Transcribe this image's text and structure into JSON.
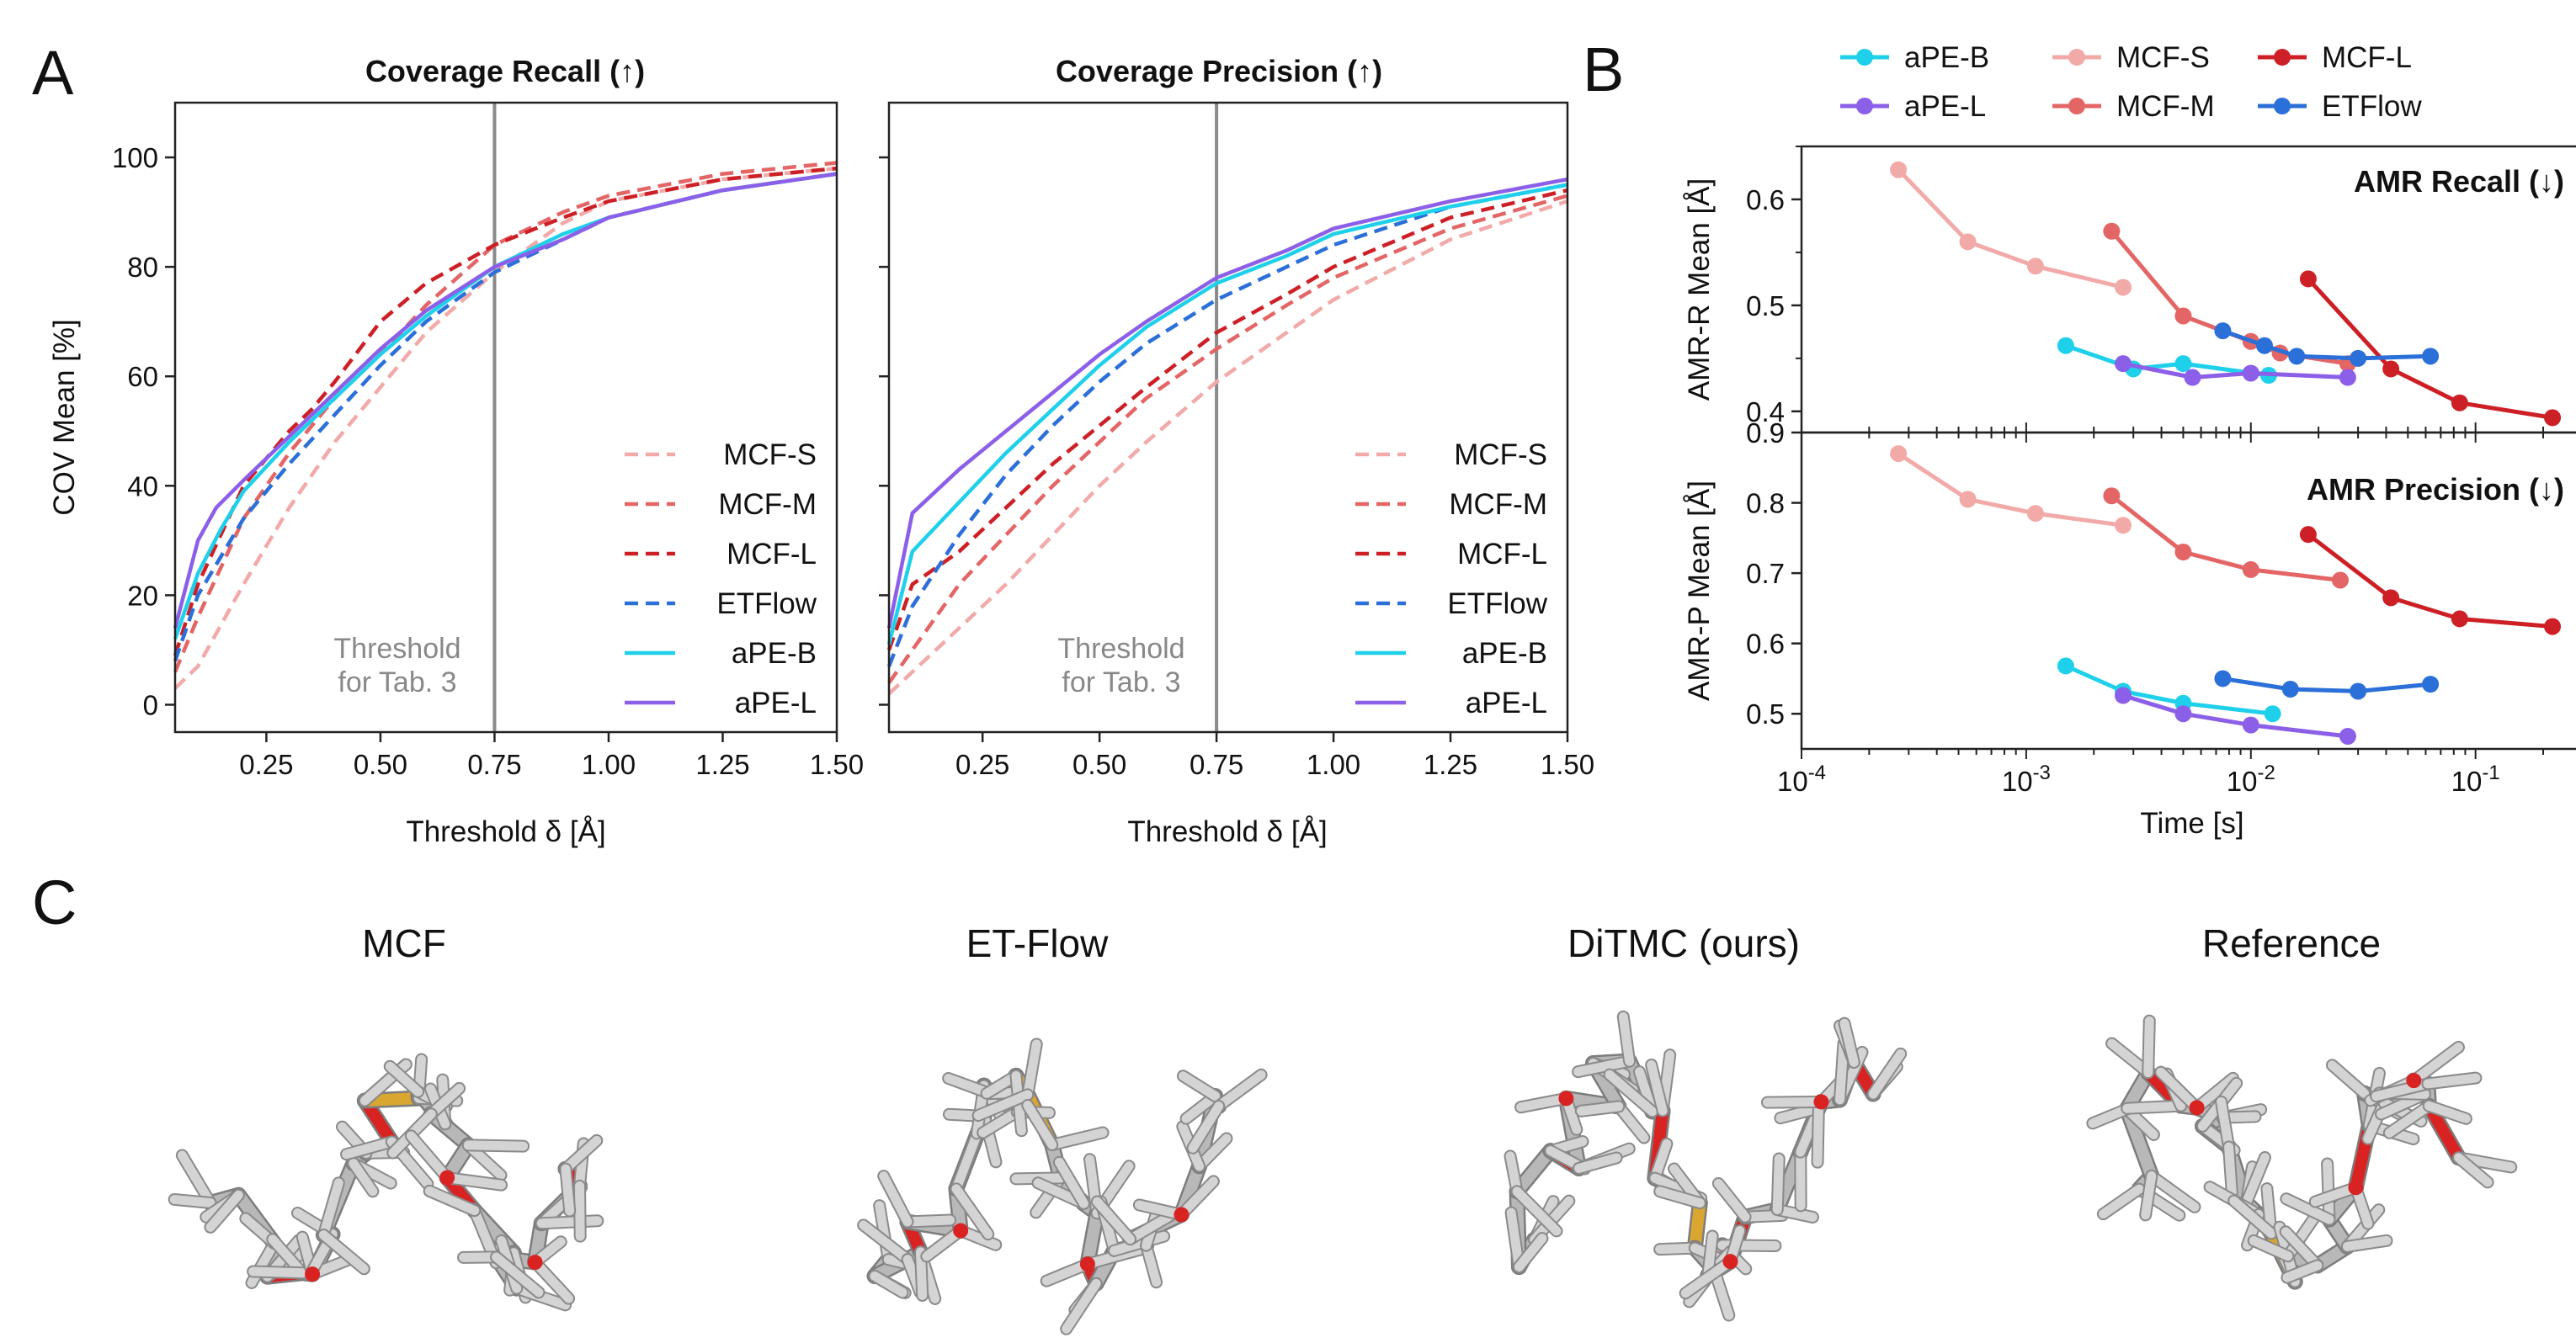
{
  "panels": {
    "a": "A",
    "b": "B",
    "c": "C"
  },
  "colors": {
    "MCF-S": "#f2aaa9",
    "MCF-M": "#e46565",
    "MCF-L": "#cd2026",
    "ETFlow": "#2b6fd9",
    "aPE-B": "#1fd0ea",
    "aPE-L": "#8c5fe8",
    "threshold": "#8a8a8a",
    "atom_O": "#d92323",
    "atom_S": "#d9a632",
    "bond_C": "#b8b8b8"
  },
  "threshold_note": [
    "Threshold",
    "for Tab. 3"
  ],
  "panel_c": {
    "labels": [
      "MCF",
      "ET-Flow",
      "DiTMC (ours)",
      "Reference"
    ],
    "icons": [
      "molecule-mcf-icon",
      "molecule-etflow-icon",
      "molecule-ditmc-icon",
      "molecule-reference-icon"
    ]
  },
  "chart_data": [
    {
      "type": "line",
      "title": "Coverage Recall (↑)",
      "xlabel": "Threshold δ [Å]",
      "ylabel": "COV Mean [%]",
      "xlim": [
        0.05,
        1.5
      ],
      "ylim": [
        -5,
        110
      ],
      "xticks": [
        "0.25",
        "0.50",
        "0.75",
        "1.00",
        "1.25",
        "1.50"
      ],
      "yticks": [
        "0",
        "20",
        "40",
        "60",
        "80",
        "100"
      ],
      "vline": 0.75,
      "legend": "bottom-right",
      "series": [
        {
          "name": "MCF-S",
          "dash": true,
          "x": [
            0.05,
            0.1,
            0.2,
            0.3,
            0.4,
            0.5,
            0.6,
            0.75,
            0.9,
            1.0,
            1.25,
            1.5
          ],
          "y": [
            3,
            7,
            22,
            36,
            48,
            58,
            68,
            79,
            88,
            92,
            96,
            98
          ]
        },
        {
          "name": "MCF-M",
          "dash": true,
          "x": [
            0.05,
            0.1,
            0.2,
            0.3,
            0.4,
            0.5,
            0.6,
            0.75,
            0.9,
            1.0,
            1.25,
            1.5
          ],
          "y": [
            6,
            16,
            34,
            46,
            56,
            64,
            73,
            84,
            90,
            93,
            97,
            99
          ]
        },
        {
          "name": "MCF-L",
          "dash": true,
          "x": [
            0.05,
            0.1,
            0.2,
            0.3,
            0.35,
            0.4,
            0.5,
            0.6,
            0.75,
            0.9,
            1.0,
            1.25,
            1.5
          ],
          "y": [
            9,
            22,
            40,
            50,
            54,
            59,
            70,
            77,
            84,
            89,
            92,
            96,
            98
          ]
        },
        {
          "name": "ETFlow",
          "dash": true,
          "x": [
            0.05,
            0.1,
            0.2,
            0.3,
            0.4,
            0.5,
            0.6,
            0.75,
            0.9,
            1.0,
            1.25,
            1.5
          ],
          "y": [
            8,
            20,
            34,
            44,
            53,
            62,
            70,
            79,
            85,
            89,
            94,
            97
          ]
        },
        {
          "name": "aPE-B",
          "dash": false,
          "x": [
            0.05,
            0.1,
            0.15,
            0.2,
            0.3,
            0.4,
            0.5,
            0.6,
            0.75,
            0.9,
            1.0,
            1.25,
            1.5
          ],
          "y": [
            12,
            24,
            32,
            39,
            48,
            56,
            64,
            71,
            80,
            86,
            89,
            94,
            97
          ]
        },
        {
          "name": "aPE-L",
          "dash": false,
          "x": [
            0.05,
            0.1,
            0.14,
            0.2,
            0.3,
            0.4,
            0.5,
            0.6,
            0.75,
            0.9,
            1.0,
            1.25,
            1.5
          ],
          "y": [
            14,
            30,
            36,
            41,
            49,
            57,
            65,
            72,
            80,
            85,
            89,
            94,
            97
          ]
        }
      ]
    },
    {
      "type": "line",
      "title": "Coverage Precision (↑)",
      "xlabel": "Threshold δ [Å]",
      "ylabel": "",
      "xlim": [
        0.05,
        1.5
      ],
      "ylim": [
        -5,
        110
      ],
      "xticks": [
        "0.25",
        "0.50",
        "0.75",
        "1.00",
        "1.25",
        "1.50"
      ],
      "yticks": [],
      "vline": 0.75,
      "legend": "bottom-right",
      "series": [
        {
          "name": "MCF-S",
          "dash": true,
          "x": [
            0.05,
            0.1,
            0.2,
            0.3,
            0.4,
            0.5,
            0.6,
            0.75,
            0.9,
            1.0,
            1.25,
            1.5
          ],
          "y": [
            2,
            6,
            14,
            22,
            31,
            40,
            48,
            59,
            68,
            74,
            85,
            92
          ]
        },
        {
          "name": "MCF-M",
          "dash": true,
          "x": [
            0.05,
            0.1,
            0.2,
            0.3,
            0.4,
            0.5,
            0.6,
            0.75,
            0.9,
            1.0,
            1.25,
            1.5
          ],
          "y": [
            4,
            10,
            22,
            31,
            40,
            48,
            56,
            65,
            73,
            78,
            87,
            93
          ]
        },
        {
          "name": "MCF-L",
          "dash": true,
          "x": [
            0.05,
            0.1,
            0.2,
            0.3,
            0.4,
            0.5,
            0.6,
            0.75,
            0.9,
            1.0,
            1.25,
            1.5
          ],
          "y": [
            10,
            22,
            28,
            36,
            44,
            51,
            58,
            68,
            75,
            80,
            89,
            94
          ]
        },
        {
          "name": "ETFlow",
          "dash": true,
          "x": [
            0.05,
            0.1,
            0.2,
            0.3,
            0.4,
            0.5,
            0.6,
            0.75,
            0.9,
            1.0,
            1.25,
            1.5
          ],
          "y": [
            7,
            18,
            31,
            42,
            51,
            59,
            66,
            74,
            80,
            84,
            91,
            95
          ]
        },
        {
          "name": "aPE-B",
          "dash": false,
          "x": [
            0.05,
            0.1,
            0.2,
            0.3,
            0.4,
            0.5,
            0.6,
            0.75,
            0.9,
            1.0,
            1.25,
            1.5
          ],
          "y": [
            11,
            28,
            37,
            46,
            54,
            62,
            69,
            77,
            82,
            86,
            91,
            95
          ]
        },
        {
          "name": "aPE-L",
          "dash": false,
          "x": [
            0.05,
            0.1,
            0.2,
            0.3,
            0.4,
            0.5,
            0.6,
            0.75,
            0.9,
            1.0,
            1.25,
            1.5
          ],
          "y": [
            14,
            35,
            43,
            50,
            57,
            64,
            70,
            78,
            83,
            87,
            92,
            96
          ]
        }
      ]
    },
    {
      "type": "line",
      "title": "AMR Recall (↓)",
      "xlabel": "",
      "ylabel": "AMR-R Mean [Å]",
      "xscale": "log",
      "xlim": [
        0.0001,
        0.3
      ],
      "ylim": [
        0.38,
        0.65
      ],
      "yticks": [
        "0.4",
        "0.5",
        "0.6"
      ],
      "legend": "top-right",
      "series": [
        {
          "name": "MCF-S",
          "x": [
            0.00027,
            0.00055,
            0.0011,
            0.0027
          ],
          "y": [
            0.628,
            0.56,
            0.537,
            0.517
          ]
        },
        {
          "name": "MCF-M",
          "x": [
            0.0024,
            0.005,
            0.01,
            0.0135,
            0.027
          ],
          "y": [
            0.57,
            0.49,
            0.466,
            0.455,
            0.445
          ]
        },
        {
          "name": "MCF-L",
          "x": [
            0.018,
            0.042,
            0.085,
            0.22
          ],
          "y": [
            0.525,
            0.44,
            0.408,
            0.394
          ]
        },
        {
          "name": "ETFlow",
          "x": [
            0.0075,
            0.0115,
            0.016,
            0.03,
            0.063
          ],
          "y": [
            0.476,
            0.462,
            0.452,
            0.45,
            0.452
          ]
        },
        {
          "name": "aPE-B",
          "x": [
            0.0015,
            0.003,
            0.005,
            0.012
          ],
          "y": [
            0.462,
            0.44,
            0.445,
            0.434
          ]
        },
        {
          "name": "aPE-L",
          "x": [
            0.0027,
            0.0055,
            0.01,
            0.027
          ],
          "y": [
            0.445,
            0.432,
            0.436,
            0.432
          ]
        }
      ]
    },
    {
      "type": "line",
      "title": "AMR Precision (↓)",
      "xlabel": "Time [s]",
      "ylabel": "AMR-P Mean [Å]",
      "xscale": "log",
      "xlim": [
        0.0001,
        0.3
      ],
      "ylim": [
        0.45,
        0.9
      ],
      "xticks": [
        "-4",
        "-3",
        "-2",
        "-1"
      ],
      "yticks": [
        "0.5",
        "0.6",
        "0.7",
        "0.8",
        "0.9"
      ],
      "legend": "top-right",
      "series": [
        {
          "name": "MCF-S",
          "x": [
            0.00027,
            0.00055,
            0.0011,
            0.0027
          ],
          "y": [
            0.87,
            0.805,
            0.785,
            0.768
          ]
        },
        {
          "name": "MCF-M",
          "x": [
            0.0024,
            0.005,
            0.01,
            0.025
          ],
          "y": [
            0.81,
            0.73,
            0.705,
            0.69
          ]
        },
        {
          "name": "MCF-L",
          "x": [
            0.018,
            0.042,
            0.085,
            0.22
          ],
          "y": [
            0.755,
            0.665,
            0.635,
            0.624
          ]
        },
        {
          "name": "ETFlow",
          "x": [
            0.0075,
            0.015,
            0.03,
            0.063
          ],
          "y": [
            0.55,
            0.535,
            0.532,
            0.542
          ]
        },
        {
          "name": "aPE-B",
          "x": [
            0.0015,
            0.0027,
            0.005,
            0.0125
          ],
          "y": [
            0.568,
            0.532,
            0.515,
            0.5
          ]
        },
        {
          "name": "aPE-L",
          "x": [
            0.0027,
            0.005,
            0.01,
            0.027
          ],
          "y": [
            0.526,
            0.5,
            0.484,
            0.468
          ]
        }
      ]
    }
  ]
}
